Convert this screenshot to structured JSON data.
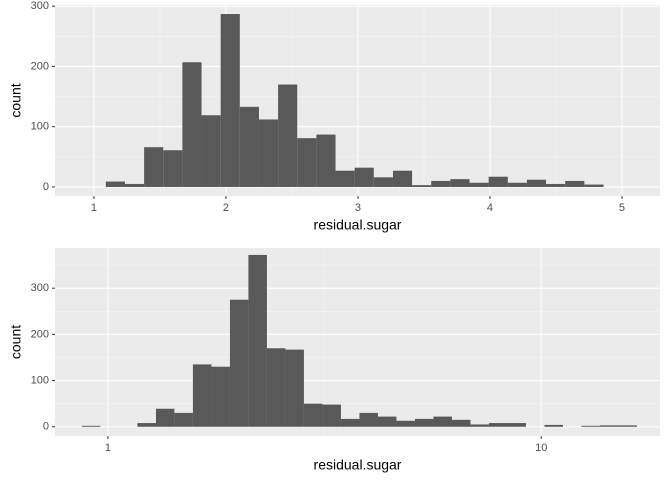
{
  "chart_data": [
    {
      "type": "histogram",
      "x_label": "residual.sugar",
      "y_label": "count",
      "color": "#595959",
      "grid": true,
      "log_x": false,
      "bins": [
        1.09,
        1.235,
        1.38,
        1.525,
        1.67,
        1.815,
        1.96,
        2.105,
        2.25,
        2.395,
        2.54,
        2.685,
        2.83,
        2.975,
        3.12,
        3.265,
        3.41,
        3.555,
        3.7,
        3.845,
        3.99,
        4.135,
        4.28,
        4.425,
        4.57,
        4.715,
        4.86
      ],
      "values": [
        9,
        5,
        66,
        61,
        207,
        119,
        287,
        133,
        112,
        170,
        81,
        87,
        27,
        32,
        16,
        27,
        3,
        10,
        13,
        7,
        17,
        7,
        12,
        5,
        10,
        4
      ],
      "xlim": [
        0.705,
        5.288
      ],
      "ylim": [
        -15,
        302
      ],
      "xticks": [
        1,
        2,
        3,
        4,
        5
      ],
      "yticks": [
        0,
        100,
        200,
        300
      ]
    },
    {
      "type": "histogram",
      "x_label": "residual.sugar",
      "y_label": "count",
      "color": "#595959",
      "grid": true,
      "log_x": true,
      "bins": [
        0.871,
        0.961,
        1.06,
        1.17,
        1.291,
        1.424,
        1.571,
        1.734,
        1.913,
        2.11,
        2.328,
        2.569,
        2.834,
        3.127,
        3.45,
        3.807,
        4.2,
        4.634,
        5.113,
        5.641,
        6.224,
        6.867,
        7.576,
        8.359,
        9.222,
        10.175,
        11.226,
        12.386,
        13.666,
        15.078,
        16.635
      ],
      "values": [
        2,
        0,
        0,
        8,
        39,
        30,
        135,
        130,
        275,
        372,
        170,
        167,
        50,
        48,
        17,
        30,
        22,
        13,
        17,
        22,
        15,
        5,
        8,
        8,
        0,
        4,
        0,
        2,
        3,
        3
      ],
      "xlim": [
        0.755,
        18.8
      ],
      "ylim": [
        -20,
        387
      ],
      "xticks": [
        1,
        10
      ],
      "yticks": [
        0,
        100,
        200,
        300
      ]
    }
  ]
}
